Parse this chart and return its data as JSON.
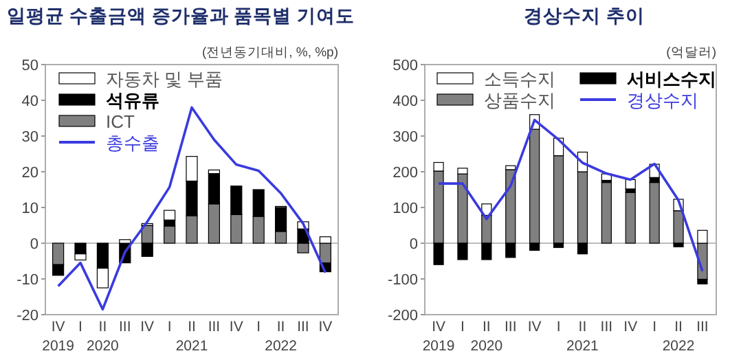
{
  "chart_data": [
    {
      "type": "bar",
      "title": "일평균 수출금액 증가율과 품목별 기여도",
      "annotations": [
        "(전년동기대비, %, %p)"
      ],
      "stacked": true,
      "legend": "top left",
      "categories": [
        "IV\n2019",
        "I",
        "II\n2020",
        "III",
        "IV",
        "I",
        "II\n2021",
        "III",
        "IV",
        "I",
        "II\n2022",
        "III",
        "IV"
      ],
      "ylim": [
        -20,
        50
      ],
      "yticks": [
        -20,
        -10,
        0,
        10,
        20,
        30,
        40,
        50
      ],
      "series": [
        {
          "name": "ICT",
          "type": "bar",
          "color": "#808080",
          "values": [
            -6,
            0,
            0,
            0,
            5,
            4.8,
            7.7,
            11,
            8,
            7.5,
            3.3,
            -2.7,
            -5.5
          ]
        },
        {
          "name": "석유류",
          "type": "bar",
          "color": "#000000",
          "values": [
            -3,
            -3,
            -7,
            -5.5,
            -3.7,
            1.7,
            9.7,
            8.5,
            8,
            7.5,
            6.7,
            4,
            -2.5
          ]
        },
        {
          "name": "자동차 및 부품",
          "type": "bar",
          "color": "#ffffff",
          "values": [
            0,
            -1.7,
            -5.5,
            1,
            0.5,
            2.7,
            6.9,
            1,
            0,
            0,
            0.3,
            2,
            1.8
          ]
        },
        {
          "name": "총수출",
          "type": "line",
          "color": "#3a3ae0",
          "values": [
            -12,
            -5.5,
            -18.5,
            -2.5,
            6,
            15.7,
            38,
            29,
            22,
            20.3,
            14,
            5.5,
            -8.2
          ]
        }
      ]
    },
    {
      "type": "bar",
      "title": "경상수지 추이",
      "annotations": [
        "(억달러)"
      ],
      "stacked": true,
      "legend": "top",
      "categories": [
        "IV\n2019",
        "I",
        "II\n2020",
        "III",
        "IV",
        "I",
        "II\n2021",
        "III",
        "IV",
        "I",
        "II\n2022",
        "III"
      ],
      "ylim": [
        -200,
        500
      ],
      "yticks": [
        -200,
        -100,
        0,
        100,
        200,
        300,
        400,
        500
      ],
      "series": [
        {
          "name": "상품수지",
          "type": "bar",
          "color": "#808080",
          "values": [
            202,
            194,
            78,
            206,
            319,
            245,
            200,
            170,
            142,
            170,
            91,
            -101
          ]
        },
        {
          "name": "서비스수지",
          "type": "bar",
          "color": "#000000",
          "values": [
            -60,
            -46,
            -46,
            -40,
            -20,
            -12,
            -30,
            6,
            10,
            14,
            -10,
            -13
          ]
        },
        {
          "name": "소득수지",
          "type": "bar",
          "color": "#ffffff",
          "values": [
            24,
            16,
            32,
            11,
            41,
            49,
            55,
            18,
            26,
            37,
            32,
            36
          ]
        },
        {
          "name": "경상수지",
          "type": "line",
          "color": "#3a3ae0",
          "values": [
            167,
            167,
            68,
            160,
            345,
            290,
            225,
            195,
            178,
            222,
            120,
            -78
          ]
        }
      ]
    }
  ]
}
